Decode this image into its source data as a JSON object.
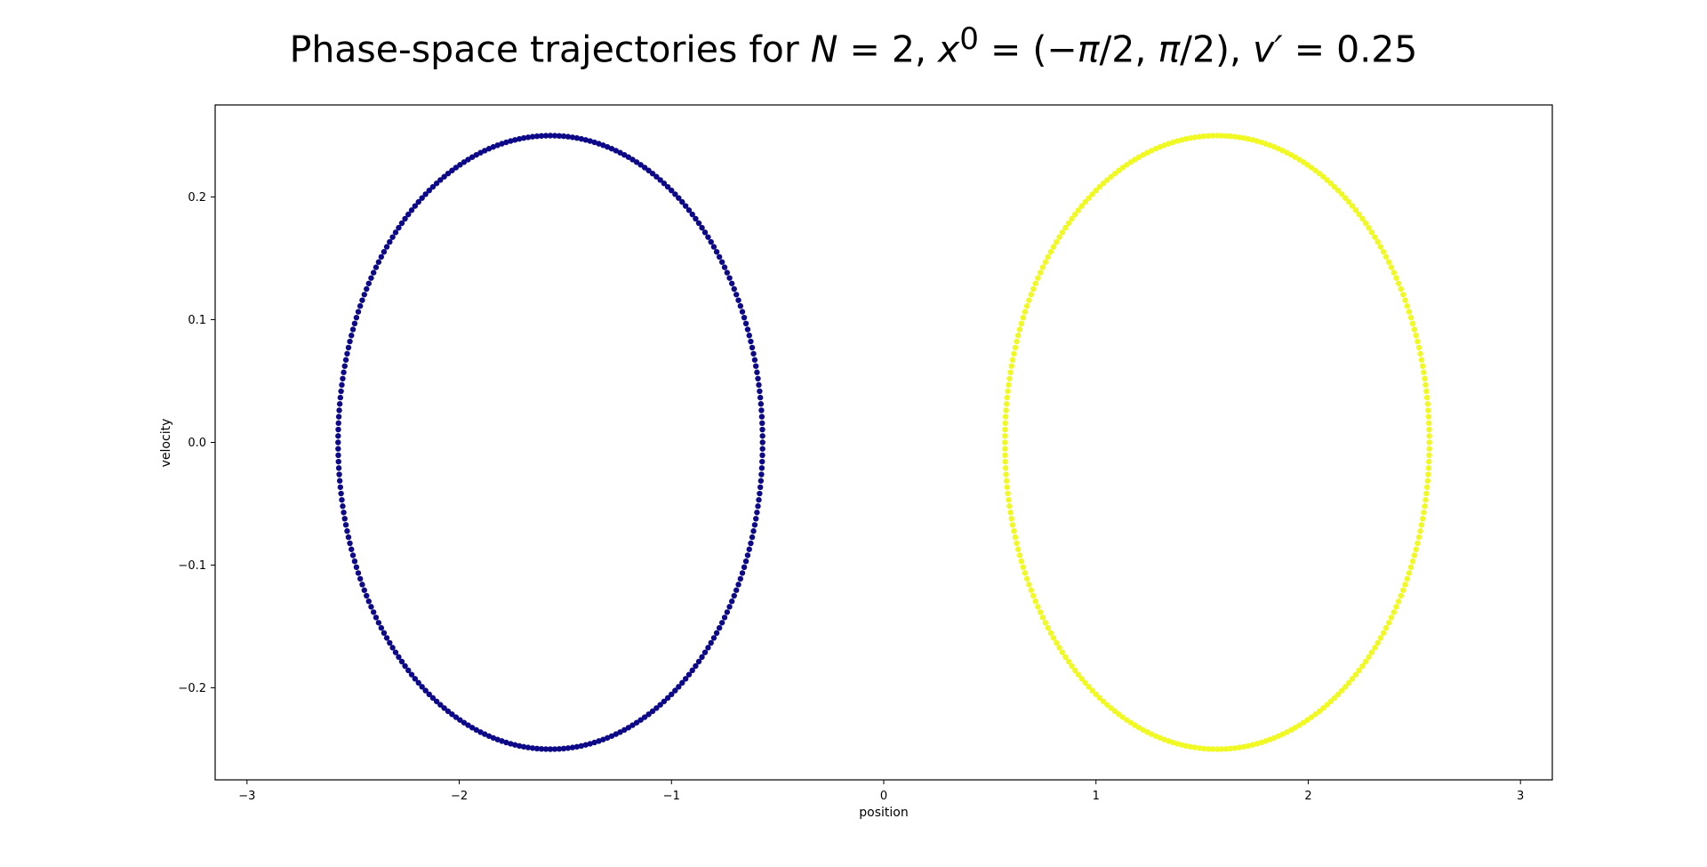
{
  "chart_data": {
    "type": "scatter",
    "title": "Phase-space trajectories for N = 2, x⁰ = (−π/2, π/2), v′ = 0.25",
    "title_parts": {
      "prefix": "Phase-space trajectories for ",
      "n_var": "N",
      "n_eq": " = 2, ",
      "x_var": "x",
      "x_sup": "0",
      "x_eq": " = (−",
      "pi_a": "π",
      "x_mid": "/2, ",
      "pi_b": "π",
      "x_end": "/2), ",
      "v_var": "v′",
      "v_eq": " = 0.25"
    },
    "xlabel": "position",
    "ylabel": "velocity",
    "xlim": [
      -3.15,
      3.15
    ],
    "ylim": [
      -0.275,
      0.275
    ],
    "xticks": [
      -3,
      -2,
      -1,
      0,
      1,
      2,
      3
    ],
    "xtick_labels": [
      "−3",
      "−2",
      "−1",
      "0",
      "1",
      "2",
      "3"
    ],
    "yticks": [
      -0.2,
      -0.1,
      0.0,
      0.1,
      0.2
    ],
    "ytick_labels": [
      "−0.2",
      "−0.1",
      "0.0",
      "0.1",
      "0.2"
    ],
    "grid": false,
    "legend": "none",
    "series": [
      {
        "color": "#0d0887",
        "shape": "ellipse",
        "center_x": -1.5708,
        "center_y": 0.0,
        "x_amplitude": 1.0,
        "y_amplitude": 0.25,
        "point_count": 300
      },
      {
        "color": "#f0f921",
        "shape": "ellipse",
        "center_x": 1.5708,
        "center_y": 0.0,
        "x_amplitude": 1.0,
        "y_amplitude": 0.25,
        "point_count": 300
      }
    ]
  }
}
